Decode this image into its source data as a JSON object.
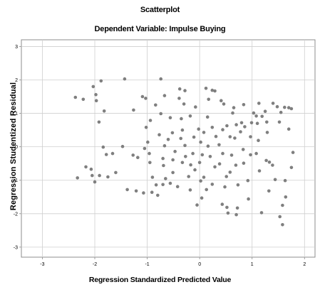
{
  "chart_data": {
    "type": "scatter",
    "title": "Scatterplot",
    "subtitle": "Dependent Variable: Impulse Buying",
    "xlabel": "Regression Standardized Predicted Value",
    "ylabel": "Regression Studentized Residual",
    "xlim": [
      -3.4,
      2.2
    ],
    "ylim": [
      -3.3,
      3.2
    ],
    "x_ticks": [
      "-3",
      "-2",
      "-1",
      "0",
      "1",
      "2"
    ],
    "x_tick_values": [
      -3,
      -2,
      -1,
      0,
      1,
      2
    ],
    "y_ticks": [
      "3",
      "2",
      "1",
      "0",
      "-1",
      "-2",
      "-3"
    ],
    "y_tick_values": [
      3,
      2,
      1,
      0,
      -1,
      -2,
      -3
    ],
    "grid": true,
    "marker_color": "#7f7f7f",
    "points": [
      [
        -2.37,
        1.48
      ],
      [
        -2.22,
        1.42
      ],
      [
        -2.03,
        1.8
      ],
      [
        -1.98,
        1.56
      ],
      [
        -1.88,
        1.97
      ],
      [
        -1.97,
        1.38
      ],
      [
        -1.82,
        1.07
      ],
      [
        -1.92,
        0.74
      ],
      [
        -1.84,
        -0.01
      ],
      [
        -1.78,
        -0.23
      ],
      [
        -2.33,
        -0.93
      ],
      [
        -2.17,
        -0.6
      ],
      [
        -2.07,
        -0.67
      ],
      [
        -2.05,
        -0.86
      ],
      [
        -2.0,
        -1.05
      ],
      [
        -1.91,
        -0.86
      ],
      [
        -1.75,
        -0.9
      ],
      [
        -1.66,
        -0.2
      ],
      [
        -1.6,
        -0.77
      ],
      [
        -1.47,
        0.01
      ],
      [
        -1.43,
        2.03
      ],
      [
        -1.26,
        1.1
      ],
      [
        -1.27,
        -0.25
      ],
      [
        -1.18,
        -0.32
      ],
      [
        -1.38,
        -1.28
      ],
      [
        -1.21,
        -1.32
      ],
      [
        -1.07,
        -1.38
      ],
      [
        -1.09,
        1.5
      ],
      [
        -1.03,
        1.45
      ],
      [
        -0.94,
        0.79
      ],
      [
        -1.02,
        0.58
      ],
      [
        -0.99,
        0.14
      ],
      [
        -1.05,
        -0.05
      ],
      [
        -0.96,
        -0.2
      ],
      [
        -0.95,
        -0.47
      ],
      [
        -0.9,
        -0.91
      ],
      [
        -0.83,
        -1.14
      ],
      [
        -0.91,
        -1.36
      ],
      [
        -0.8,
        -1.45
      ],
      [
        -0.74,
        2.03
      ],
      [
        -0.84,
        1.25
      ],
      [
        -0.67,
        1.53
      ],
      [
        -0.74,
        0.99
      ],
      [
        -0.77,
        0.36
      ],
      [
        -0.67,
        0.03
      ],
      [
        -0.7,
        -0.35
      ],
      [
        -0.69,
        -0.56
      ],
      [
        -0.65,
        -0.95
      ],
      [
        -0.7,
        -1.13
      ],
      [
        -0.56,
        -1.09
      ],
      [
        -0.56,
        0.87
      ],
      [
        -0.52,
        0.42
      ],
      [
        -0.47,
        -0.14
      ],
      [
        -0.51,
        -0.39
      ],
      [
        -0.51,
        -0.77
      ],
      [
        -0.42,
        -1.19
      ],
      [
        -0.38,
        1.73
      ],
      [
        -0.39,
        1.45
      ],
      [
        -0.28,
        1.68
      ],
      [
        -0.3,
        1.28
      ],
      [
        -0.35,
        0.84
      ],
      [
        -0.33,
        0.5
      ],
      [
        -0.36,
        0.25
      ],
      [
        -0.28,
        0.04
      ],
      [
        -0.27,
        -0.29
      ],
      [
        -0.33,
        -0.47
      ],
      [
        -0.21,
        -0.89
      ],
      [
        -0.18,
        -1.29
      ],
      [
        -0.11,
        0.29
      ],
      [
        -0.13,
        -0.2
      ],
      [
        -0.17,
        -0.54
      ],
      [
        -0.09,
        -0.69
      ],
      [
        -0.08,
        1.19
      ],
      [
        -0.02,
        0.53
      ],
      [
        0.02,
        0.14
      ],
      [
        0.05,
        -0.24
      ],
      [
        0.0,
        -0.47
      ],
      [
        0.08,
        -0.91
      ],
      [
        0.02,
        -1.02
      ],
      [
        -0.05,
        -1.74
      ],
      [
        0.04,
        -1.53
      ],
      [
        0.12,
        1.75
      ],
      [
        0.17,
        1.42
      ],
      [
        0.24,
        1.69
      ],
      [
        0.29,
        1.67
      ],
      [
        0.15,
        0.89
      ],
      [
        0.24,
        0.58
      ],
      [
        0.08,
        0.43
      ],
      [
        0.16,
        0.02
      ],
      [
        0.2,
        -0.29
      ],
      [
        0.29,
        -0.6
      ],
      [
        0.24,
        -1.12
      ],
      [
        0.13,
        -1.28
      ],
      [
        0.37,
        0.06
      ],
      [
        0.41,
        1.38
      ],
      [
        0.46,
        1.28
      ],
      [
        0.44,
        0.51
      ],
      [
        0.52,
        0.63
      ],
      [
        0.44,
        -0.2
      ],
      [
        0.38,
        -0.51
      ],
      [
        0.51,
        -0.89
      ],
      [
        0.48,
        -1.2
      ],
      [
        0.43,
        -1.72
      ],
      [
        0.52,
        -1.81
      ],
      [
        0.54,
        -1.98
      ],
      [
        0.58,
        0.3
      ],
      [
        0.63,
        1.01
      ],
      [
        0.7,
        0.66
      ],
      [
        0.67,
        0.26
      ],
      [
        0.61,
        -0.25
      ],
      [
        0.69,
        -0.55
      ],
      [
        0.58,
        -0.76
      ],
      [
        0.73,
        -1.14
      ],
      [
        0.72,
        -1.83
      ],
      [
        0.7,
        -2.03
      ],
      [
        0.78,
        0.45
      ],
      [
        0.84,
        1.26
      ],
      [
        0.8,
        0.72
      ],
      [
        0.86,
        0.6
      ],
      [
        0.83,
        -0.08
      ],
      [
        0.84,
        -0.49
      ],
      [
        0.92,
        -1.01
      ],
      [
        0.93,
        -1.56
      ],
      [
        0.97,
        0.3
      ],
      [
        0.99,
        0.72
      ],
      [
        1.03,
        1.01
      ],
      [
        1.08,
        0.92
      ],
      [
        1.13,
        1.3
      ],
      [
        1.1,
        0.7
      ],
      [
        1.12,
        0.19
      ],
      [
        1.08,
        -0.2
      ],
      [
        1.14,
        -0.72
      ],
      [
        1.18,
        -1.97
      ],
      [
        1.19,
        0.91
      ],
      [
        1.25,
        1.06
      ],
      [
        1.28,
        0.74
      ],
      [
        1.29,
        0.43
      ],
      [
        1.27,
        -0.41
      ],
      [
        1.33,
        -0.46
      ],
      [
        1.32,
        -1.32
      ],
      [
        1.4,
        1.3
      ],
      [
        1.44,
        -0.98
      ],
      [
        1.52,
        0.74
      ],
      [
        1.55,
        1.03
      ],
      [
        1.62,
        1.18
      ],
      [
        1.7,
        1.17
      ],
      [
        1.75,
        1.14
      ],
      [
        1.7,
        0.53
      ],
      [
        1.78,
        -0.17
      ],
      [
        1.75,
        -0.62
      ],
      [
        1.63,
        -1.01
      ],
      [
        1.64,
        -1.5
      ],
      [
        1.58,
        -1.75
      ],
      [
        1.53,
        -2.09
      ],
      [
        1.58,
        -2.33
      ],
      [
        1.48,
        1.2
      ],
      [
        -0.6,
        0.22
      ],
      [
        0.31,
        0.31
      ],
      [
        0.65,
        1.17
      ],
      [
        -0.18,
        0.92
      ],
      [
        1.39,
        -0.55
      ],
      [
        0.97,
        -0.24
      ]
    ]
  }
}
